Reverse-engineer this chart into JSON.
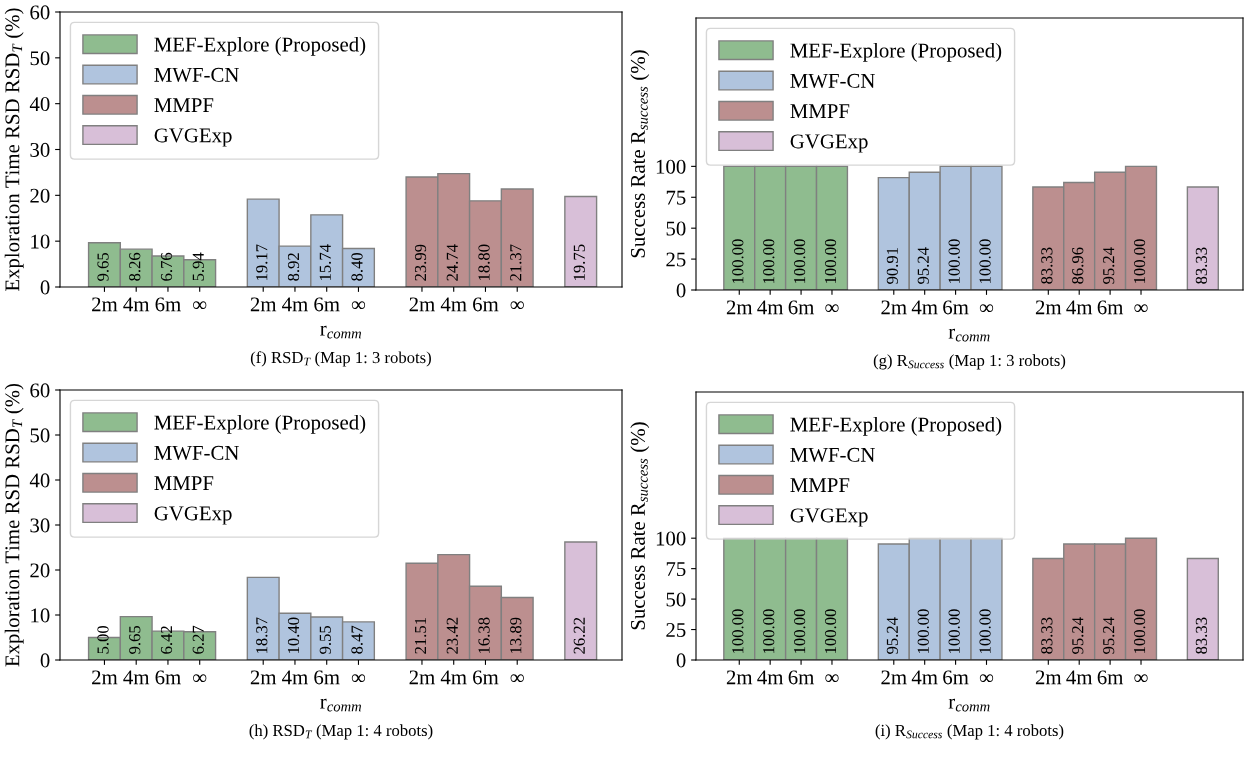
{
  "chart_data": [
    {
      "type": "bar",
      "title": "(f) RSD$_{T}$ (Map 1: 3 robots)",
      "xlabel": "r$_{comm}$",
      "ylabel": "Exploration Time RSD RSD$_{T}$ (%)",
      "categories": [
        "2m",
        "4m",
        "6m",
        "∞",
        null,
        "2m",
        "4m",
        "6m",
        "∞",
        null,
        "2m",
        "4m",
        "6m",
        "∞",
        null,
        null
      ],
      "ylim": [
        0,
        60
      ],
      "yticks": [
        0,
        10,
        20,
        30,
        40,
        50,
        60
      ],
      "legend": "top left",
      "series": [
        {
          "name": "MEF-Explore (Proposed)",
          "color": "#8fbc8f",
          "values": [
            9.65,
            8.26,
            6.76,
            5.94,
            null,
            null,
            null,
            null,
            null,
            null,
            null,
            null,
            null,
            null,
            null,
            null
          ],
          "value_labels": [
            "9.65",
            "8.26",
            "6.76",
            "5.94",
            null,
            null,
            null,
            null,
            null,
            null,
            null,
            null,
            null,
            null,
            null,
            null
          ]
        },
        {
          "name": "MWF-CN",
          "color": "#b0c4de",
          "values": [
            null,
            null,
            null,
            null,
            null,
            19.17,
            8.92,
            15.74,
            8.4,
            null,
            null,
            null,
            null,
            null,
            null,
            null
          ],
          "value_labels": [
            null,
            null,
            null,
            null,
            null,
            "19.17",
            "8.92",
            "15.74",
            "8.40",
            null,
            null,
            null,
            null,
            null,
            null,
            null
          ]
        },
        {
          "name": "MMPF",
          "color": "#bc8f8f",
          "values": [
            null,
            null,
            null,
            null,
            null,
            null,
            null,
            null,
            null,
            null,
            23.99,
            24.74,
            18.8,
            21.37,
            null,
            null
          ],
          "value_labels": [
            null,
            null,
            null,
            null,
            null,
            null,
            null,
            null,
            null,
            null,
            "23.99",
            "24.74",
            "18.80",
            "21.37",
            null,
            null
          ]
        },
        {
          "name": "GVGExp",
          "color": "#d8bfd8",
          "values": [
            null,
            null,
            null,
            null,
            null,
            null,
            null,
            null,
            null,
            null,
            null,
            null,
            null,
            null,
            null,
            19.75
          ],
          "value_labels": [
            null,
            null,
            null,
            null,
            null,
            null,
            null,
            null,
            null,
            null,
            null,
            null,
            null,
            null,
            null,
            "19.75"
          ]
        }
      ]
    },
    {
      "type": "bar",
      "title": "(g) R$_{Success}$ (Map 1: 3 robots)",
      "xlabel": "r$_{comm}$",
      "ylabel": "Success Rate R$_{success}$ (%)",
      "categories": [
        "2m",
        "4m",
        "6m",
        "∞",
        null,
        "2m",
        "4m",
        "6m",
        "∞",
        null,
        "2m",
        "4m",
        "6m",
        "∞",
        null,
        null
      ],
      "ylim": [
        0,
        220
      ],
      "yticks": [
        0,
        25,
        50,
        75,
        100
      ],
      "legend": "top left",
      "series": [
        {
          "name": "MEF-Explore (Proposed)",
          "color": "#8fbc8f",
          "values": [
            100,
            100,
            100,
            100,
            null,
            null,
            null,
            null,
            null,
            null,
            null,
            null,
            null,
            null,
            null,
            null
          ],
          "value_labels": [
            "100.00",
            "100.00",
            "100.00",
            "100.00",
            null,
            null,
            null,
            null,
            null,
            null,
            null,
            null,
            null,
            null,
            null,
            null
          ]
        },
        {
          "name": "MWF-CN",
          "color": "#b0c4de",
          "values": [
            null,
            null,
            null,
            null,
            null,
            90.91,
            95.24,
            100,
            100,
            null,
            null,
            null,
            null,
            null,
            null,
            null
          ],
          "value_labels": [
            null,
            null,
            null,
            null,
            null,
            "90.91",
            "95.24",
            "100.00",
            "100.00",
            null,
            null,
            null,
            null,
            null,
            null,
            null
          ]
        },
        {
          "name": "MMPF",
          "color": "#bc8f8f",
          "values": [
            null,
            null,
            null,
            null,
            null,
            null,
            null,
            null,
            null,
            null,
            83.33,
            86.96,
            95.24,
            100,
            null,
            null
          ],
          "value_labels": [
            null,
            null,
            null,
            null,
            null,
            null,
            null,
            null,
            null,
            null,
            "83.33",
            "86.96",
            "95.24",
            "100.00",
            null,
            null
          ]
        },
        {
          "name": "GVGExp",
          "color": "#d8bfd8",
          "values": [
            null,
            null,
            null,
            null,
            null,
            null,
            null,
            null,
            null,
            null,
            null,
            null,
            null,
            null,
            null,
            83.33
          ],
          "value_labels": [
            null,
            null,
            null,
            null,
            null,
            null,
            null,
            null,
            null,
            null,
            null,
            null,
            null,
            null,
            null,
            "83.33"
          ]
        }
      ]
    },
    {
      "type": "bar",
      "title": "(h) RSD$_{T}$ (Map 1: 4 robots)",
      "xlabel": "r$_{comm}$",
      "ylabel": "Exploration Time RSD RSD$_{T}$ (%)",
      "categories": [
        "2m",
        "4m",
        "6m",
        "∞",
        null,
        "2m",
        "4m",
        "6m",
        "∞",
        null,
        "2m",
        "4m",
        "6m",
        "∞",
        null,
        null
      ],
      "ylim": [
        0,
        60
      ],
      "yticks": [
        0,
        10,
        20,
        30,
        40,
        50,
        60
      ],
      "legend": "top left",
      "series": [
        {
          "name": "MEF-Explore (Proposed)",
          "color": "#8fbc8f",
          "values": [
            5.0,
            9.65,
            6.42,
            6.27,
            null,
            null,
            null,
            null,
            null,
            null,
            null,
            null,
            null,
            null,
            null,
            null
          ],
          "value_labels": [
            "5.00",
            "9.65",
            "6.42",
            "6.27",
            null,
            null,
            null,
            null,
            null,
            null,
            null,
            null,
            null,
            null,
            null,
            null
          ]
        },
        {
          "name": "MWF-CN",
          "color": "#b0c4de",
          "values": [
            null,
            null,
            null,
            null,
            null,
            18.37,
            10.4,
            9.55,
            8.47,
            null,
            null,
            null,
            null,
            null,
            null,
            null
          ],
          "value_labels": [
            null,
            null,
            null,
            null,
            null,
            "18.37",
            "10.40",
            "9.55",
            "8.47",
            null,
            null,
            null,
            null,
            null,
            null,
            null
          ]
        },
        {
          "name": "MMPF",
          "color": "#bc8f8f",
          "values": [
            null,
            null,
            null,
            null,
            null,
            null,
            null,
            null,
            null,
            null,
            21.51,
            23.42,
            16.38,
            13.89,
            null,
            null
          ],
          "value_labels": [
            null,
            null,
            null,
            null,
            null,
            null,
            null,
            null,
            null,
            null,
            "21.51",
            "23.42",
            "16.38",
            "13.89",
            null,
            null
          ]
        },
        {
          "name": "GVGExp",
          "color": "#d8bfd8",
          "values": [
            null,
            null,
            null,
            null,
            null,
            null,
            null,
            null,
            null,
            null,
            null,
            null,
            null,
            null,
            null,
            26.22
          ],
          "value_labels": [
            null,
            null,
            null,
            null,
            null,
            null,
            null,
            null,
            null,
            null,
            null,
            null,
            null,
            null,
            null,
            "26.22"
          ]
        }
      ]
    },
    {
      "type": "bar",
      "title": "(i) R$_{Success}$ (Map 1: 4 robots)",
      "xlabel": "r$_{comm}$",
      "ylabel": "Success Rate R$_{success}$ (%)",
      "categories": [
        "2m",
        "4m",
        "6m",
        "∞",
        null,
        "2m",
        "4m",
        "6m",
        "∞",
        null,
        "2m",
        "4m",
        "6m",
        "∞",
        null,
        null
      ],
      "ylim": [
        0,
        220
      ],
      "yticks": [
        0,
        25,
        50,
        75,
        100
      ],
      "legend": "top left",
      "series": [
        {
          "name": "MEF-Explore (Proposed)",
          "color": "#8fbc8f",
          "values": [
            100,
            100,
            100,
            100,
            null,
            null,
            null,
            null,
            null,
            null,
            null,
            null,
            null,
            null,
            null,
            null
          ],
          "value_labels": [
            "100.00",
            "100.00",
            "100.00",
            "100.00",
            null,
            null,
            null,
            null,
            null,
            null,
            null,
            null,
            null,
            null,
            null,
            null
          ]
        },
        {
          "name": "MWF-CN",
          "color": "#b0c4de",
          "values": [
            null,
            null,
            null,
            null,
            null,
            95.24,
            100,
            100,
            100,
            null,
            null,
            null,
            null,
            null,
            null,
            null
          ],
          "value_labels": [
            null,
            null,
            null,
            null,
            null,
            "95.24",
            "100.00",
            "100.00",
            "100.00",
            null,
            null,
            null,
            null,
            null,
            null,
            null
          ]
        },
        {
          "name": "MMPF",
          "color": "#bc8f8f",
          "values": [
            null,
            null,
            null,
            null,
            null,
            null,
            null,
            null,
            null,
            null,
            83.33,
            95.24,
            95.24,
            100,
            null,
            null
          ],
          "value_labels": [
            null,
            null,
            null,
            null,
            null,
            null,
            null,
            null,
            null,
            null,
            "83.33",
            "95.24",
            "95.24",
            "100.00",
            null,
            null
          ]
        },
        {
          "name": "GVGExp",
          "color": "#d8bfd8",
          "values": [
            null,
            null,
            null,
            null,
            null,
            null,
            null,
            null,
            null,
            null,
            null,
            null,
            null,
            null,
            null,
            83.33
          ],
          "value_labels": [
            null,
            null,
            null,
            null,
            null,
            null,
            null,
            null,
            null,
            null,
            null,
            null,
            null,
            null,
            null,
            "83.33"
          ]
        }
      ]
    }
  ]
}
